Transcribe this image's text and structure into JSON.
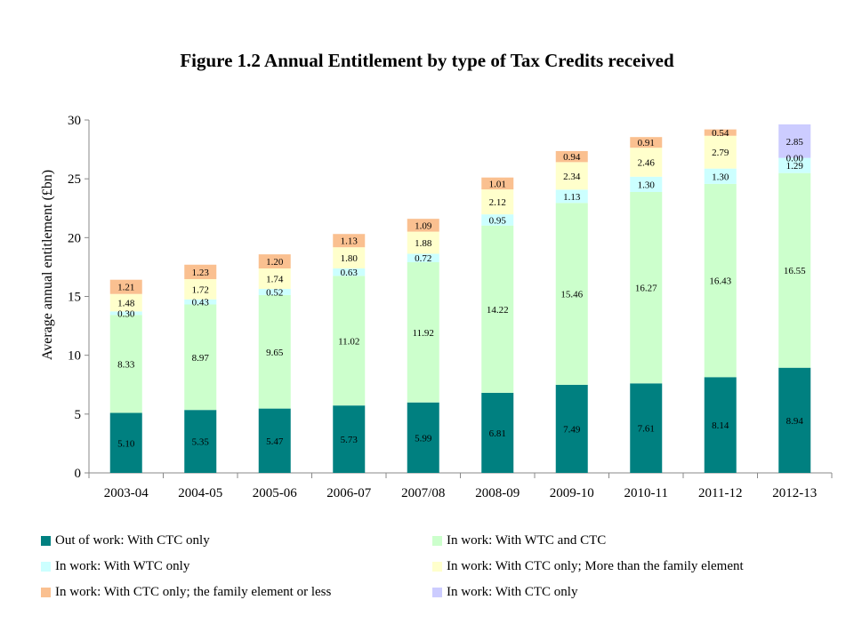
{
  "chart_data": {
    "type": "bar",
    "stacked": true,
    "title": "Figure 1.2 Annual Entitlement by type of Tax Credits received",
    "xlabel": "",
    "ylabel": "Average annual entitlement (£bn)",
    "ylim": [
      0,
      30
    ],
    "yticks": [
      "0",
      "5",
      "10",
      "15",
      "20",
      "25",
      "30"
    ],
    "grid": false,
    "legend_position": "bottom",
    "categories": [
      "2003-04",
      "2004-05",
      "2005-06",
      "2006-07",
      "2007/08",
      "2008-09",
      "2009-10",
      "2010-11",
      "2011-12",
      "2012-13"
    ],
    "series": [
      {
        "name": "Out of work: With CTC only",
        "color": "#008080",
        "values": [
          5.1,
          5.35,
          5.47,
          5.73,
          5.99,
          6.81,
          7.49,
          7.61,
          8.14,
          8.94
        ],
        "labels": [
          "5.10",
          "5.35",
          "5.47",
          "5.73",
          "5.99",
          "6.81",
          "7.49",
          "7.61",
          "8.14",
          "8.94"
        ]
      },
      {
        "name": "In work: With WTC and CTC",
        "color": "#ccffcc",
        "values": [
          8.33,
          8.97,
          9.65,
          11.02,
          11.92,
          14.22,
          15.46,
          16.27,
          16.43,
          16.55
        ],
        "labels": [
          "8.33",
          "8.97",
          "9.65",
          "11.02",
          "11.92",
          "14.22",
          "15.46",
          "16.27",
          "16.43",
          "16.55"
        ]
      },
      {
        "name": "In work: With WTC only",
        "color": "#ccffff",
        "values": [
          0.3,
          0.43,
          0.52,
          0.63,
          0.72,
          0.95,
          1.13,
          1.3,
          1.3,
          1.29
        ],
        "labels": [
          "0.30",
          "0.43",
          "0.52",
          "0.63",
          "0.72",
          "0.95",
          "1.13",
          "1.30",
          "1.30",
          "1.29"
        ]
      },
      {
        "name": "In work: With CTC only; More than the family element",
        "color": "#ffffcc",
        "values": [
          1.48,
          1.72,
          1.74,
          1.8,
          1.88,
          2.12,
          2.34,
          2.46,
          2.79,
          0.0
        ],
        "labels": [
          "1.48",
          "1.72",
          "1.74",
          "1.80",
          "1.88",
          "2.12",
          "2.34",
          "2.46",
          "2.79",
          "0.00"
        ]
      },
      {
        "name": "In work: With CTC only; the family element or less",
        "color": "#fac090",
        "values": [
          1.21,
          1.23,
          1.2,
          1.13,
          1.09,
          1.01,
          0.94,
          0.91,
          0.54,
          null
        ],
        "labels": [
          "1.21",
          "1.23",
          "1.20",
          "1.13",
          "1.09",
          "1.01",
          "0.94",
          "0.91",
          "0.54",
          ""
        ]
      },
      {
        "name": "In work: With CTC only",
        "color": "#ccccff",
        "values": [
          null,
          null,
          null,
          null,
          null,
          null,
          null,
          null,
          null,
          2.85
        ],
        "labels": [
          "",
          "",
          "",
          "",
          "",
          "",
          "",
          "",
          "",
          "2.85"
        ]
      }
    ]
  }
}
